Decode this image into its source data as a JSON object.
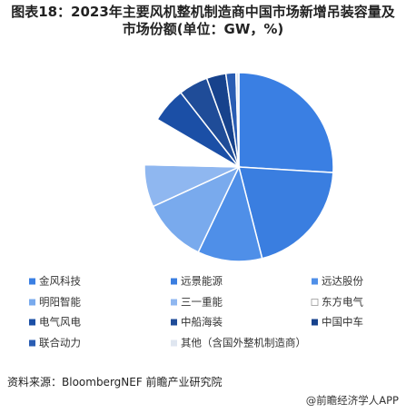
{
  "chart_data": {
    "type": "pie",
    "title": "图表18：2023年主要风机整机制造商中国市场新增吊装容量及市场份额(单位：GW，%)",
    "categories": [
      "金风科技",
      "远景能源",
      "远达股份",
      "明阳智能",
      "三一重能",
      "东方电气",
      "电气风电",
      "中船海装",
      "中国中车",
      "联合动力",
      "其他（含国外整机制造商）"
    ],
    "values": [
      25.8,
      20,
      11,
      11,
      7.2,
      8,
      6,
      5,
      3.3,
      1.7,
      0.5
    ],
    "colors": [
      "#3a7fe3",
      "#3a7ee0",
      "#4f8fe8",
      "#79aaed",
      "#8fb7f0",
      "#ffffff",
      "#1b4fa6",
      "#1f4c98",
      "#17428c",
      "#2a5db3",
      "#dfe6f0"
    ]
  },
  "source": "资料来源：BloombergNEF 前瞻产业研究院",
  "footer": "@前瞻经济学人APP"
}
